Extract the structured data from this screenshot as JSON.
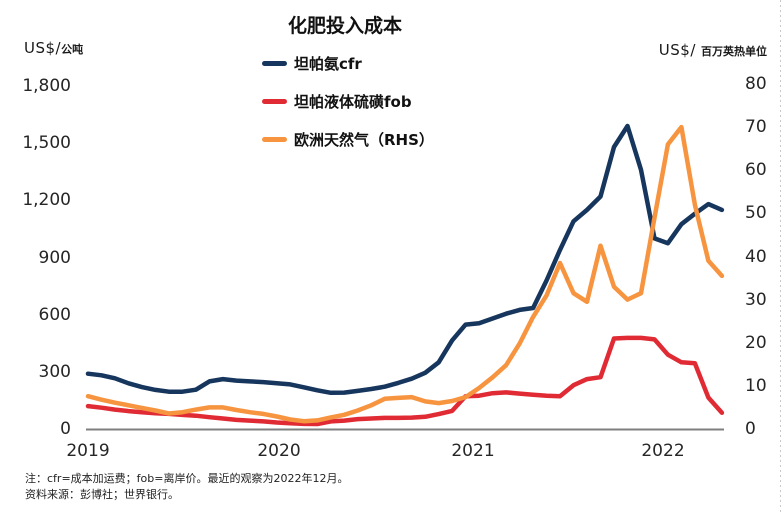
{
  "title": "化肥投入成本",
  "left_axis": {
    "unit_prefix": "US$/",
    "unit": "公吨",
    "ticks": [
      {
        "label": "1,800",
        "value": 1800
      },
      {
        "label": "1,500",
        "value": 1500
      },
      {
        "label": "1,200",
        "value": 1200
      },
      {
        "label": "900",
        "value": 900
      },
      {
        "label": "600",
        "value": 600
      },
      {
        "label": "300",
        "value": 300
      },
      {
        "label": "0",
        "value": 0
      }
    ]
  },
  "right_axis": {
    "unit_prefix": "US$/",
    "unit": "百万英热单位",
    "ticks": [
      {
        "label": "80",
        "value": 80
      },
      {
        "label": "70",
        "value": 70
      },
      {
        "label": "60",
        "value": 60
      },
      {
        "label": "50",
        "value": 50
      },
      {
        "label": "40",
        "value": 40
      },
      {
        "label": "30",
        "value": 30
      },
      {
        "label": "20",
        "value": 20
      },
      {
        "label": "10",
        "value": 10
      },
      {
        "label": "0",
        "value": 0
      }
    ]
  },
  "legend": [
    {
      "label": "坦帕氨cfr",
      "color": "#17365d"
    },
    {
      "label": "坦帕液体硫磺fob",
      "color": "#e02b35"
    },
    {
      "label": "欧洲天然气（RHS）",
      "color": "#f79440"
    }
  ],
  "x_axis": {
    "years": [
      "2019",
      "2020",
      "2021",
      "2022"
    ]
  },
  "notes": {
    "note": "注：cfr=成本加运费；fob=离岸价。最近的观察为2022年12月。",
    "source": "资料来源：彭博社；世界银行。"
  },
  "chart_data": {
    "type": "line",
    "title": "化肥投入成本",
    "grid": false,
    "legend_position": "top-center",
    "left_ylabel": "US$/公吨",
    "right_ylabel": "US$/百万英热单位",
    "left_ylim": [
      0,
      1800
    ],
    "right_ylim": [
      0,
      80
    ],
    "x": [
      "2019-01",
      "2019-02",
      "2019-03",
      "2019-04",
      "2019-05",
      "2019-06",
      "2019-07",
      "2019-08",
      "2019-09",
      "2019-10",
      "2019-11",
      "2019-12",
      "2020-01",
      "2020-02",
      "2020-03",
      "2020-04",
      "2020-05",
      "2020-06",
      "2020-07",
      "2020-08",
      "2020-09",
      "2020-10",
      "2020-11",
      "2020-12",
      "2021-01",
      "2021-02",
      "2021-03",
      "2021-04",
      "2021-05",
      "2021-06",
      "2021-07",
      "2021-08",
      "2021-09",
      "2021-10",
      "2021-11",
      "2021-12",
      "2022-01",
      "2022-02",
      "2022-03",
      "2022-04",
      "2022-05",
      "2022-06",
      "2022-07",
      "2022-08",
      "2022-09",
      "2022-10",
      "2022-11",
      "2022-12"
    ],
    "series": [
      {
        "name": "坦帕氨cfr",
        "axis": "left",
        "color": "#17365d",
        "values": [
          290,
          282,
          266,
          240,
          220,
          205,
          196,
          196,
          206,
          250,
          262,
          254,
          250,
          246,
          240,
          234,
          219,
          203,
          190,
          191,
          200,
          210,
          222,
          242,
          264,
          295,
          350,
          465,
          548,
          555,
          580,
          605,
          625,
          635,
          780,
          940,
          1090,
          1150,
          1220,
          1480,
          1590,
          1360,
          1000,
          975,
          1075,
          1130,
          1180,
          1150
        ]
      },
      {
        "name": "坦帕液体硫磺fob",
        "axis": "left",
        "color": "#e02b35",
        "values": [
          120,
          112,
          102,
          94,
          88,
          83,
          79,
          74,
          70,
          62,
          55,
          48,
          44,
          40,
          34,
          30,
          27,
          26,
          40,
          44,
          52,
          55,
          58,
          58,
          60,
          64,
          78,
          95,
          172,
          175,
          188,
          192,
          186,
          180,
          175,
          172,
          230,
          262,
          272,
          475,
          478,
          478,
          470,
          390,
          350,
          345,
          165,
          85
        ]
      },
      {
        "name": "欧洲天然气（RHS）",
        "axis": "right",
        "color": "#f79440",
        "values": [
          7.6,
          6.8,
          6.1,
          5.5,
          4.9,
          4.3,
          3.6,
          3.9,
          4.5,
          5.0,
          5.0,
          4.4,
          3.9,
          3.5,
          2.9,
          2.2,
          1.8,
          2.0,
          2.7,
          3.3,
          4.3,
          5.5,
          7.0,
          7.2,
          7.4,
          6.4,
          6.0,
          6.5,
          7.4,
          9.5,
          12.0,
          14.8,
          19.8,
          26.0,
          31.0,
          38.5,
          31.5,
          29.5,
          42.5,
          33.0,
          30.0,
          31.5,
          49.0,
          66.0,
          70.0,
          52.0,
          39.0,
          35.5
        ]
      }
    ]
  }
}
